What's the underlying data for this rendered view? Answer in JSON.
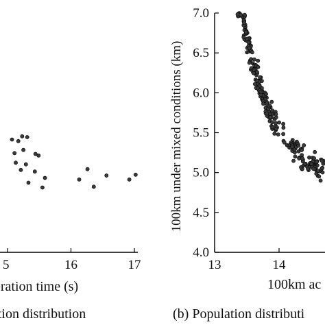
{
  "chart_data": [
    {
      "panel": "a",
      "type": "scatter",
      "caption": "ation distribution",
      "xlabel": "eration time (s)",
      "ylabel": "",
      "x_ticks": [
        "5",
        "16",
        "17"
      ],
      "xlim": [
        14.8,
        17.0
      ],
      "ylim": [
        4.0,
        7.0
      ],
      "points": [
        [
          14.83,
          5.43
        ],
        [
          15.07,
          5.41
        ],
        [
          15.17,
          5.39
        ],
        [
          15.23,
          5.45
        ],
        [
          15.31,
          5.44
        ],
        [
          15.11,
          5.24
        ],
        [
          15.25,
          5.28
        ],
        [
          15.44,
          5.23
        ],
        [
          15.49,
          5.21
        ],
        [
          15.13,
          5.12
        ],
        [
          15.29,
          5.1
        ],
        [
          15.43,
          5.01
        ],
        [
          15.21,
          5.03
        ],
        [
          15.33,
          4.87
        ],
        [
          15.59,
          4.93
        ],
        [
          15.55,
          4.81
        ],
        [
          16.13,
          4.91
        ],
        [
          16.26,
          5.04
        ],
        [
          16.36,
          4.82
        ],
        [
          16.56,
          4.96
        ],
        [
          16.92,
          4.91
        ],
        [
          17.02,
          4.97
        ]
      ]
    },
    {
      "panel": "b",
      "type": "scatter",
      "caption": "(b) Population distributi",
      "xlabel": "100km ac",
      "ylabel": "100km under mixed conditions (km)",
      "x_ticks": [
        "13",
        "14"
      ],
      "y_ticks": [
        "4.0",
        "4.5",
        "5.0",
        "5.5",
        "6.0",
        "6.5",
        "7.0"
      ],
      "xlim": [
        13.0,
        14.7
      ],
      "ylim": [
        4.0,
        7.0
      ],
      "grid": false,
      "point_count": 260
    }
  ],
  "colors": {
    "point_fill": "#3a3a3a",
    "point_edge": "#000000",
    "axis": "#000000",
    "background": "#ffffff"
  }
}
